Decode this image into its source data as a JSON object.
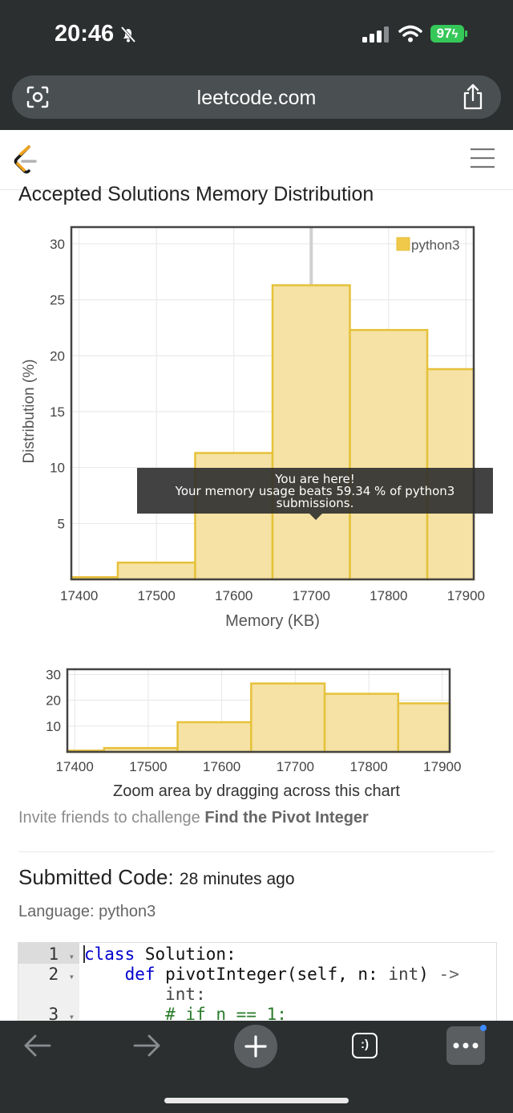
{
  "status_bar": {
    "time": "20:46",
    "battery": "97",
    "icons": [
      "bell-slash-icon",
      "signal-icon",
      "wifi-icon",
      "battery-icon"
    ]
  },
  "browser": {
    "url": "leetcode.com",
    "icons": [
      "camera-search-icon",
      "share-icon"
    ]
  },
  "header": {
    "logo": "leetcode-logo",
    "menu_icon": "hamburger-menu-icon"
  },
  "page": {
    "title": "Accepted Solutions Memory Distribution",
    "zoom_hint": "Zoom area by dragging across this chart",
    "invite_prefix": "Invite friends to challenge ",
    "invite_problem": "Find the Pivot Integer",
    "submitted_label": "Submitted Code:",
    "submitted_ago": "28 minutes ago",
    "language": "Language: python3"
  },
  "tooltip": {
    "line1": "You are here!",
    "line2": "Your memory usage beats 59.34 % of python3",
    "line3": "submissions."
  },
  "code": {
    "lines": [
      {
        "num": "1",
        "text": "class Solution:"
      },
      {
        "num": "2",
        "text": "    def pivotInteger(self, n: int) ->"
      },
      {
        "num": "",
        "text": "        int:"
      },
      {
        "num": "3",
        "text": "        # if n == 1:"
      }
    ]
  },
  "bottom_bar": {
    "icons": [
      "back-arrow-icon",
      "forward-arrow-icon",
      "new-tab-plus-icon",
      "tabs-icon",
      "more-menu-icon"
    ],
    "tabs_label": ":)"
  },
  "chart_data": [
    {
      "type": "bar",
      "ylabel": "Distribution (%)",
      "xlabel": "Memory (KB)",
      "legend": "top-right",
      "xlim": [
        17390,
        17910
      ],
      "ylim": [
        0,
        31.5
      ],
      "x_ticks": [
        17400,
        17500,
        17600,
        17700,
        17800,
        17900
      ],
      "y_ticks": [
        5,
        10,
        15,
        20,
        25,
        30
      ],
      "grid": true,
      "highlight_x": 17700,
      "series": [
        {
          "name": "python3",
          "color": "#f5e2a4",
          "stroke": "#e6c13a",
          "bins": [
            {
              "x0": 17390,
              "x1": 17450,
              "value": 0.2
            },
            {
              "x0": 17450,
              "x1": 17550,
              "value": 1.5
            },
            {
              "x0": 17550,
              "x1": 17650,
              "value": 11.3
            },
            {
              "x0": 17650,
              "x1": 17750,
              "value": 26.3
            },
            {
              "x0": 17750,
              "x1": 17850,
              "value": 22.3
            },
            {
              "x0": 17850,
              "x1": 17910,
              "value": 18.8
            }
          ]
        }
      ]
    },
    {
      "type": "bar",
      "xlim": [
        17390,
        17910
      ],
      "ylim": [
        0,
        32
      ],
      "x_ticks": [
        17400,
        17500,
        17600,
        17700,
        17800,
        17900
      ],
      "y_ticks": [
        10,
        20,
        30
      ],
      "grid": true,
      "series": [
        {
          "color": "#f5e2a4",
          "stroke": "#e6c13a",
          "bins": [
            {
              "x0": 17390,
              "x1": 17440,
              "value": 0.5
            },
            {
              "x0": 17440,
              "x1": 17540,
              "value": 1.5
            },
            {
              "x0": 17540,
              "x1": 17640,
              "value": 11.5
            },
            {
              "x0": 17640,
              "x1": 17740,
              "value": 26.5
            },
            {
              "x0": 17740,
              "x1": 17840,
              "value": 22.5
            },
            {
              "x0": 17840,
              "x1": 17910,
              "value": 18.8
            }
          ]
        }
      ]
    }
  ]
}
